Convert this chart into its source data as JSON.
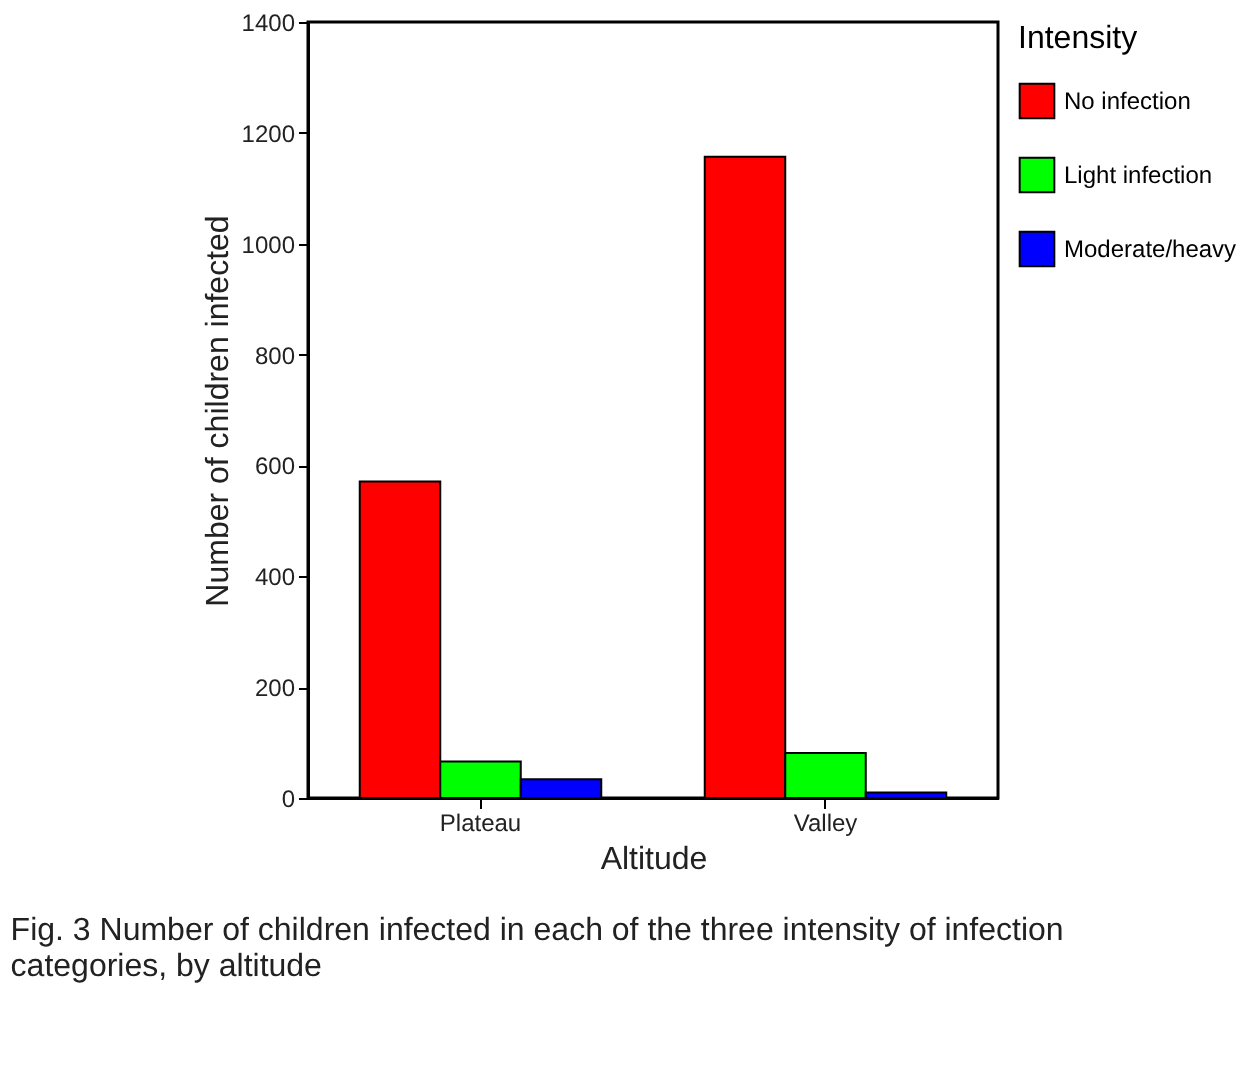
{
  "chart_data": {
    "type": "bar",
    "xlabel": "Altitude",
    "ylabel": "Number of children infected",
    "legend_title": "Intensity",
    "categories": [
      "Plateau",
      "Valley"
    ],
    "series": [
      {
        "name": "No infection",
        "color": "#ff0000",
        "values": [
          571,
          1157
        ]
      },
      {
        "name": "Light infection",
        "color": "#00ff00",
        "values": [
          66,
          81
        ]
      },
      {
        "name": "Moderate/heavy",
        "color": "#0000ff",
        "values": [
          34,
          10
        ]
      }
    ],
    "ylim": [
      0,
      1400
    ],
    "yticks": [
      0,
      200,
      400,
      600,
      800,
      1000,
      1200,
      1400
    ],
    "grid": false,
    "legend": "right",
    "annotations": [
      "Fig. 3 Number of children infected in each of the three intensity of infection categories, by altitude"
    ]
  }
}
